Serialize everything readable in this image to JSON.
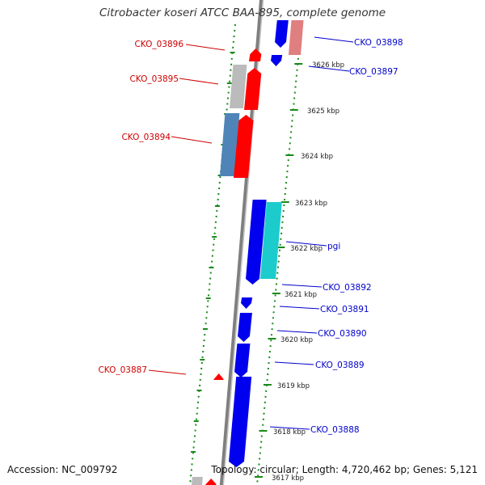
{
  "title": "Citrobacter koseri ATCC BAA-895, complete genome",
  "footer": {
    "accession": "Accession: NC_009792",
    "summary": "Topology: circular; Length: 4,720,462 bp; Genes: 5,121"
  },
  "colors": {
    "forward_gene": "#0000ee",
    "reverse_gene": "#ff0000",
    "label_forward": "#0000cc",
    "label_reverse": "#cc0000",
    "backbone": "#7f7f7f",
    "tick": "#1a8a1a",
    "steelblue": "#4f84b8",
    "cyan": "#1ccccc",
    "grey": "#bbbbbb",
    "pink": "#e07f7f"
  },
  "ticks": [
    {
      "label": "3626 kbp"
    },
    {
      "label": "3625 kbp"
    },
    {
      "label": "3624 kbp"
    },
    {
      "label": "3623 kbp"
    },
    {
      "label": "3622 kbp"
    },
    {
      "label": "3621 kbp"
    },
    {
      "label": "3620 kbp"
    },
    {
      "label": "3619 kbp"
    },
    {
      "label": "3618 kbp"
    },
    {
      "label": "3617 kbp"
    }
  ],
  "gene_labels": {
    "right": [
      "CKO_03898",
      "CKO_03897",
      "pgi",
      "CKO_03892",
      "CKO_03891",
      "CKO_03890",
      "CKO_03889",
      "CKO_03888"
    ],
    "left": [
      "CKO_03896",
      "CKO_03895",
      "CKO_03894",
      "CKO_03887"
    ]
  }
}
